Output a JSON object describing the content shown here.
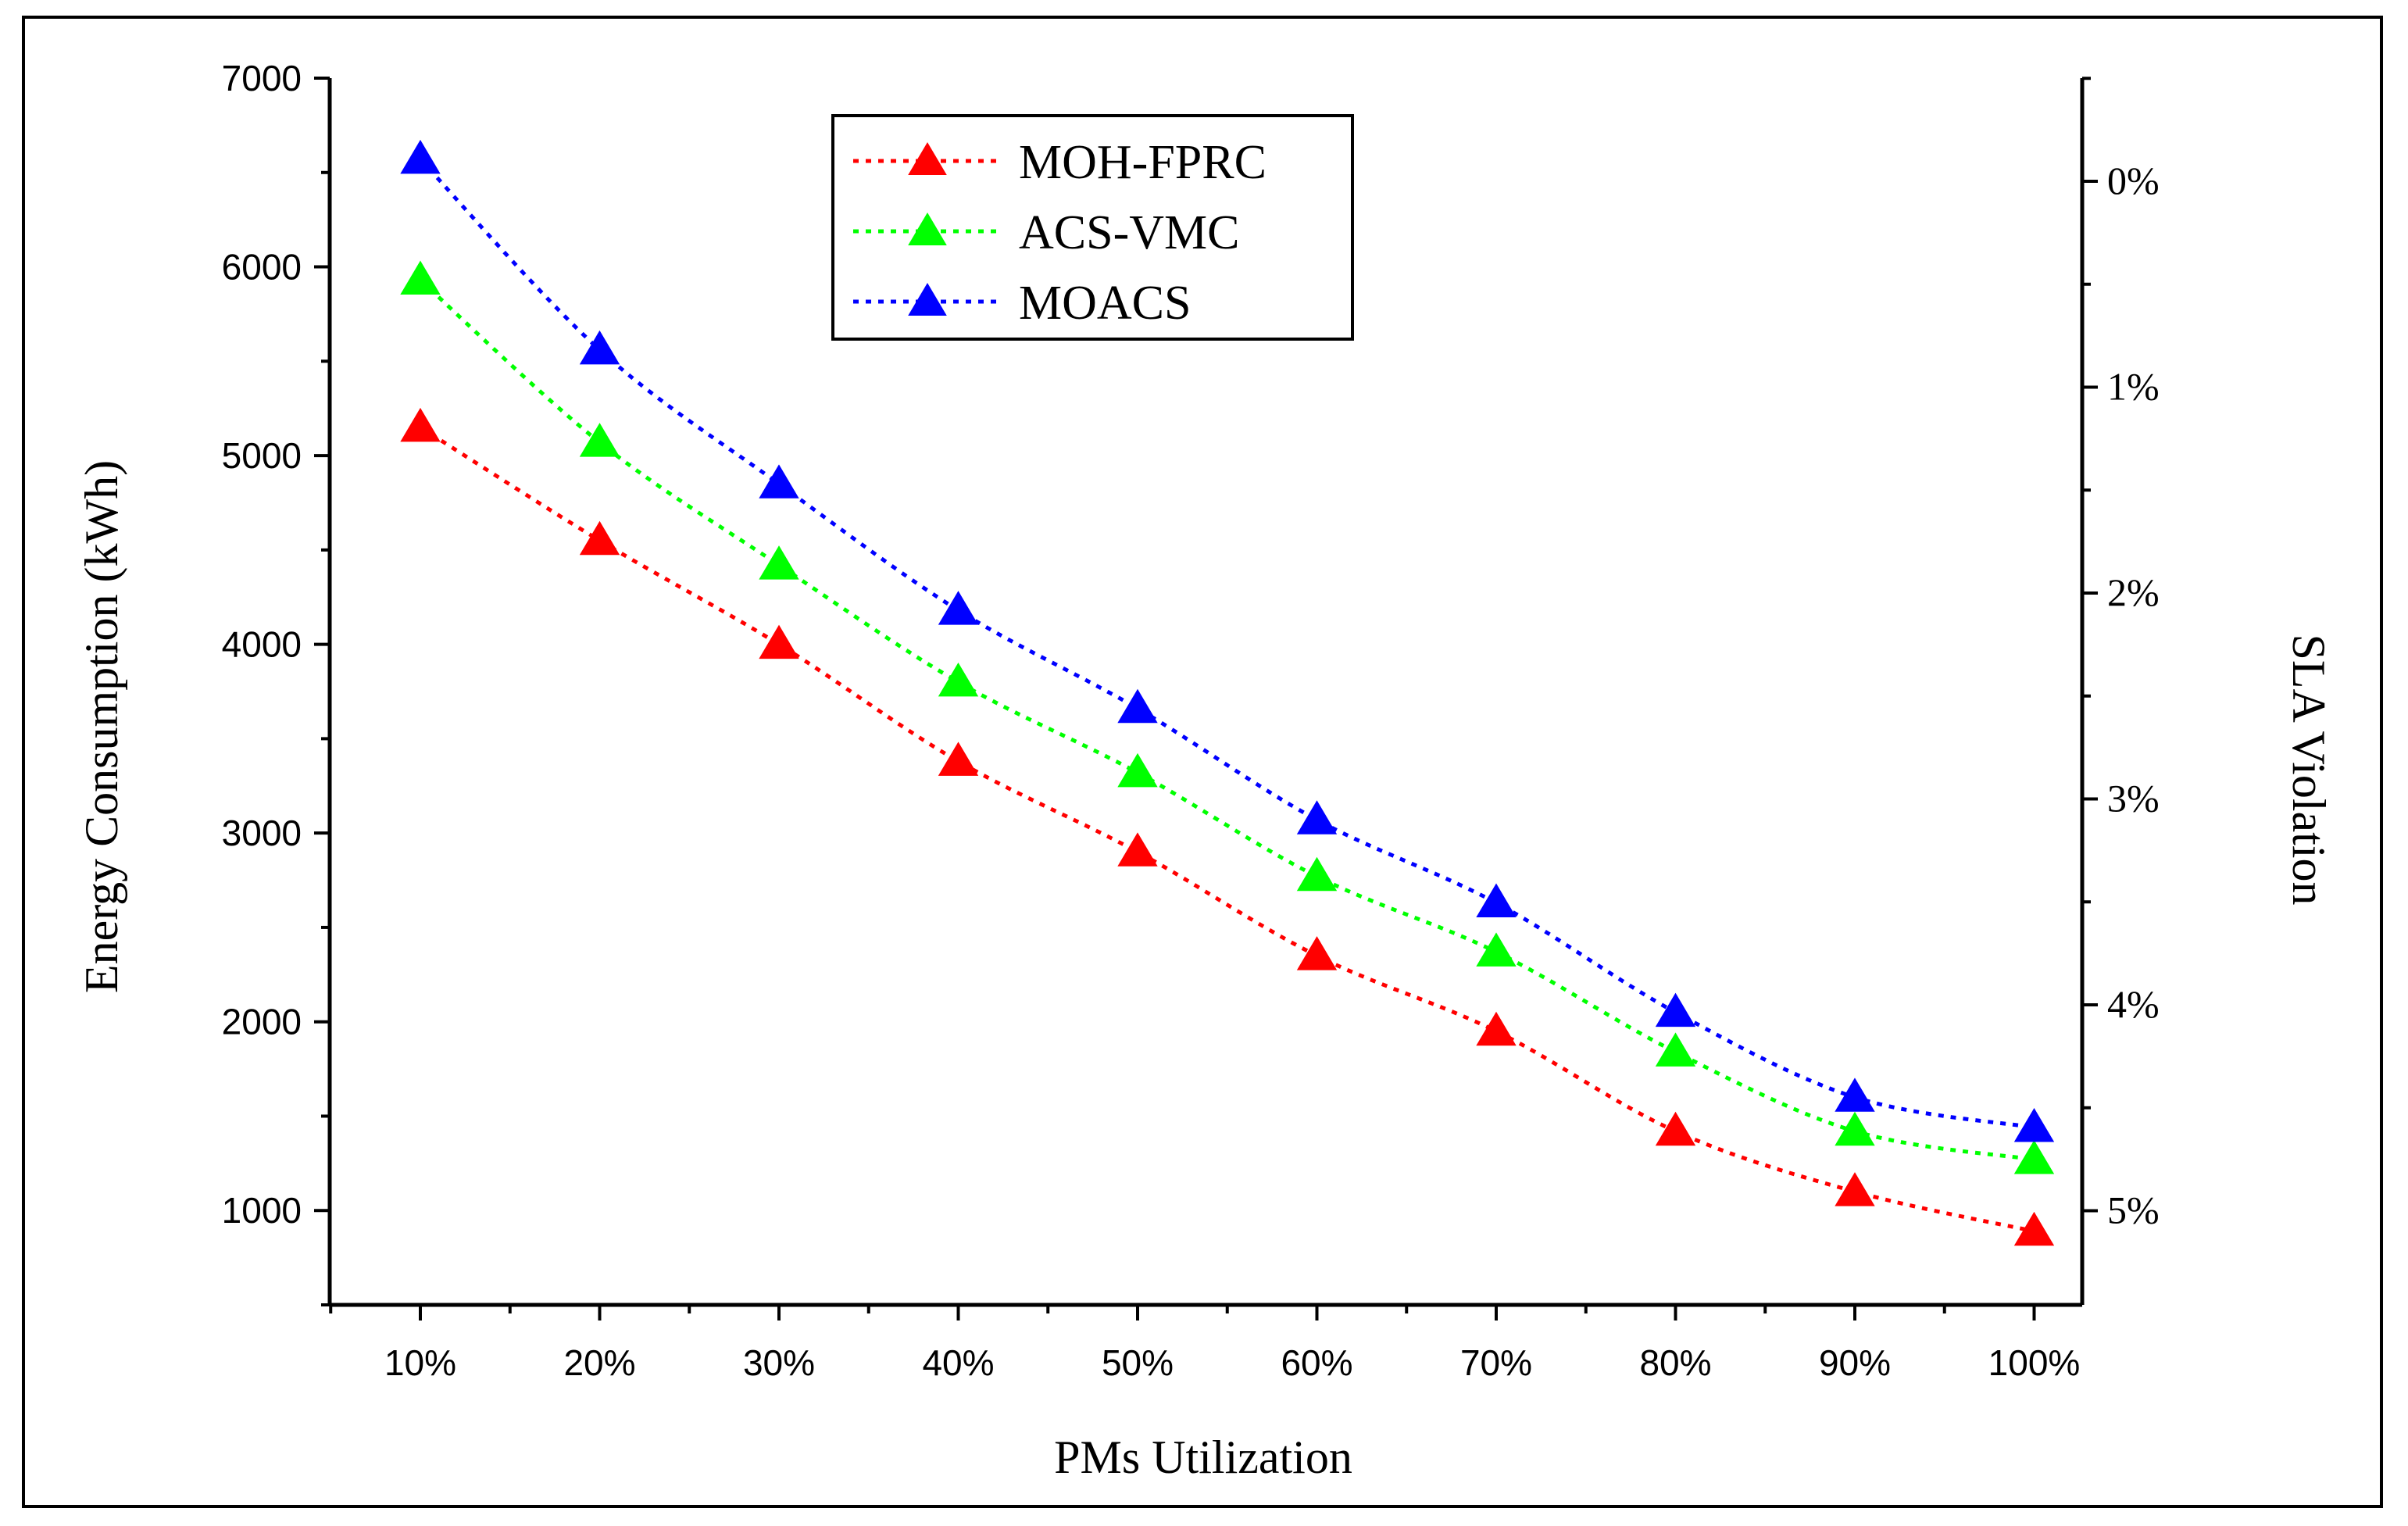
{
  "chart_data": {
    "type": "line",
    "categories": [
      "10%",
      "20%",
      "30%",
      "40%",
      "50%",
      "60%",
      "70%",
      "80%",
      "90%",
      "100%"
    ],
    "series": [
      {
        "name": "MOH-FPRC",
        "color": "#ff0000",
        "values": [
          5150,
          4550,
          4000,
          3380,
          2900,
          2350,
          1950,
          1420,
          1100,
          890
        ]
      },
      {
        "name": "ACS-VMC",
        "color": "#00ff00",
        "values": [
          5930,
          5070,
          4420,
          3800,
          3320,
          2770,
          2370,
          1840,
          1420,
          1270
        ]
      },
      {
        "name": "MOACS",
        "color": "#0000ff",
        "values": [
          6570,
          5560,
          4850,
          4180,
          3660,
          3070,
          2630,
          2050,
          1600,
          1440
        ]
      }
    ],
    "xlabel": "PMs Utilization",
    "ylabel": "Energy Consumption (kWh)",
    "ylim": [
      500,
      7000
    ],
    "yticks": [
      "1000",
      "2000",
      "3000",
      "4000",
      "5000",
      "6000",
      "7000"
    ],
    "y2label": "SLA Violation",
    "y2ticks": [
      "0%",
      "1%",
      "2%",
      "3%",
      "4%",
      "5%"
    ],
    "legend_position": "top-center",
    "grid": false
  }
}
